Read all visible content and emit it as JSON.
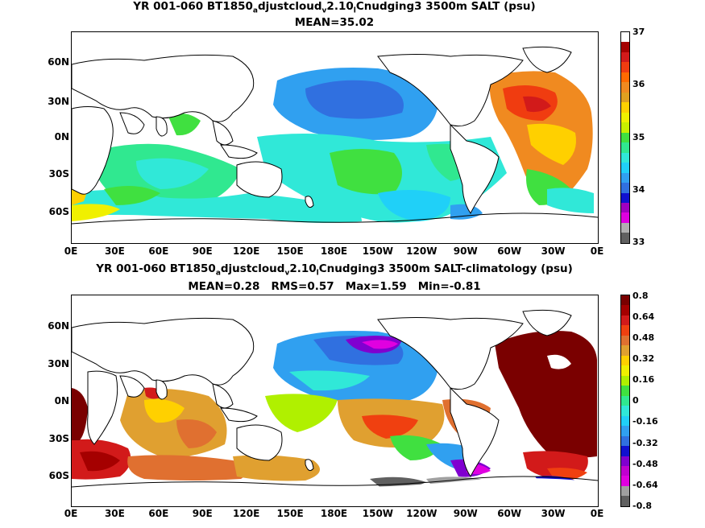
{
  "panels": [
    {
      "title_parts": [
        "YR 001-060 BT1850",
        "a",
        "djustcloud",
        "v",
        "2.10",
        "l",
        "Cnudging3 3500m SALT (psu)"
      ],
      "stats": "MEAN=35.02",
      "colorbar": {
        "labels": [
          "37",
          "36",
          "35",
          "34",
          "33"
        ],
        "colors": [
          "#ffffff",
          "#a50000",
          "#d21a1a",
          "#f03c10",
          "#ff6a00",
          "#f08a20",
          "#e0a020",
          "#ffd000",
          "#f0f000",
          "#c8f000",
          "#40e040",
          "#30e890",
          "#30e8d8",
          "#20d0f8",
          "#30a0f0",
          "#3070e0",
          "#1010d0",
          "#a000c0",
          "#e000e0",
          "#b0b0b0",
          "#606060"
        ]
      }
    },
    {
      "title_parts": [
        "YR 001-060 BT1850",
        "a",
        "djustcloud",
        "v",
        "2.10",
        "l",
        "Cnudging3 3500m SALT-climatology (psu)"
      ],
      "stats": "MEAN=0.28   RMS=0.57   Max=1.59   Min=-0.81",
      "colorbar": {
        "labels": [
          "0.8",
          "0.64",
          "0.48",
          "0.32",
          "0.16",
          "0",
          "-0.16",
          "-0.32",
          "-0.48",
          "-0.64",
          "-0.8"
        ],
        "colors": [
          "#7a0000",
          "#a50000",
          "#d21a1a",
          "#f04010",
          "#e07030",
          "#e0a030",
          "#ffd000",
          "#f0f000",
          "#b0f000",
          "#40e040",
          "#30e890",
          "#30e8d8",
          "#20d0f8",
          "#30a0f0",
          "#3070e0",
          "#1010d0",
          "#8000d0",
          "#c000d0",
          "#e000e0",
          "#a0a0a0",
          "#606060"
        ]
      }
    }
  ],
  "lat_labels": [
    "60N",
    "30N",
    "0N",
    "30S",
    "60S"
  ],
  "lon_labels": [
    "0E",
    "30E",
    "60E",
    "90E",
    "120E",
    "150E",
    "180E",
    "150W",
    "120W",
    "90W",
    "60W",
    "30W",
    "0E"
  ]
}
